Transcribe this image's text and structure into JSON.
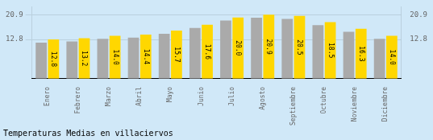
{
  "chart_data": {
    "type": "bar",
    "title": "Temperaturas Medias en villaciervos",
    "categories": [
      "Enero",
      "Febrero",
      "Marzo",
      "Abril",
      "Mayo",
      "Junio",
      "Julio",
      "Agosto",
      "Septiembre",
      "Octubre",
      "Noviembre",
      "Diciembre"
    ],
    "series": [
      {
        "color": "#AAAAAA",
        "values": [
          11.8,
          12.2,
          13.0,
          13.4,
          14.7,
          16.6,
          19.0,
          19.9,
          19.5,
          17.5,
          15.3,
          13.0
        ]
      },
      {
        "color": "#FFD700",
        "values": [
          12.8,
          13.2,
          14.0,
          14.4,
          15.7,
          17.6,
          20.0,
          20.9,
          20.5,
          18.5,
          16.3,
          14.0
        ],
        "value_labels": [
          "12.8",
          "13.2",
          "14.0",
          "14.4",
          "15.7",
          "17.6",
          "20.0",
          "20.9",
          "20.5",
          "18.5",
          "16.3",
          "14.0"
        ],
        "data_labels": true
      }
    ],
    "ylim": [
      0,
      23.5
    ],
    "yticks": [
      12.8,
      20.9
    ],
    "y2lim": [
      0,
      23.5
    ],
    "y2ticks": [
      12.8,
      20.9
    ],
    "grid": true
  }
}
